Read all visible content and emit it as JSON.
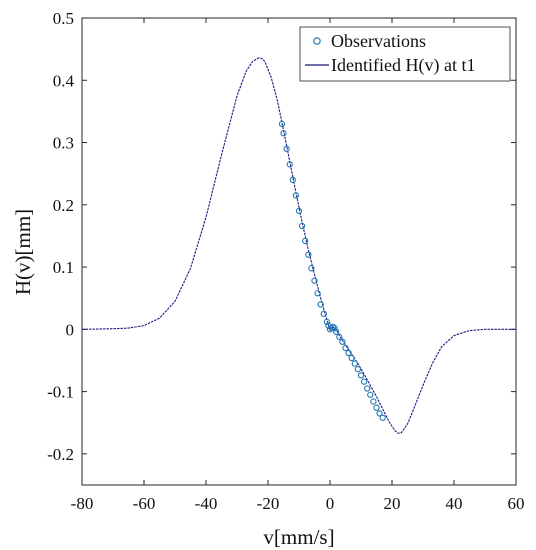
{
  "chart_data": {
    "type": "line",
    "title": "",
    "xlabel": "v[mm/s]",
    "ylabel": "H(v)[mm]",
    "xlim": [
      -80,
      60
    ],
    "ylim": [
      -0.25,
      0.5
    ],
    "xticks": [
      -80,
      -60,
      -40,
      -20,
      0,
      20,
      40,
      60
    ],
    "xtick_labels": [
      "-80",
      "-60",
      "-40",
      "-20",
      "0",
      "20",
      "40",
      "60"
    ],
    "yticks": [
      -0.2,
      -0.1,
      0,
      0.1,
      0.2,
      0.3,
      0.4,
      0.5
    ],
    "ytick_labels": [
      "-0.2",
      "-0.1",
      "0",
      "0.1",
      "0.2",
      "0.3",
      "0.4",
      "0.5"
    ],
    "grid": false,
    "legend_position": "top-right",
    "series": [
      {
        "name": "Observations",
        "style": "markers",
        "marker": "circle",
        "color": "#1f77b4",
        "x": [
          -15.5,
          -15,
          -14,
          -13,
          -12,
          -11,
          -10,
          -9,
          -8,
          -7,
          -6,
          -5,
          -4,
          -3,
          -2,
          -1,
          -0.5,
          0,
          0.5,
          1,
          1.5,
          2,
          3,
          4,
          5,
          6,
          7,
          8,
          9,
          10,
          11,
          12,
          13,
          14,
          15,
          16,
          17
        ],
        "y": [
          0.33,
          0.315,
          0.29,
          0.265,
          0.24,
          0.215,
          0.19,
          0.166,
          0.142,
          0.12,
          0.098,
          0.078,
          0.058,
          0.04,
          0.025,
          0.012,
          0.006,
          0.0,
          0.002,
          0.004,
          0.002,
          -0.004,
          -0.012,
          -0.02,
          -0.03,
          -0.038,
          -0.046,
          -0.055,
          -0.064,
          -0.074,
          -0.084,
          -0.095,
          -0.105,
          -0.116,
          -0.126,
          -0.135,
          -0.142
        ]
      },
      {
        "name": "Identified H(v) at t1",
        "style": "line",
        "color": "#1a1a80",
        "x": [
          -80,
          -70,
          -65,
          -60,
          -55,
          -50,
          -45,
          -40,
          -35,
          -30,
          -27,
          -25,
          -23,
          -22,
          -21,
          -19,
          -17,
          -15,
          -13,
          -11,
          -9,
          -7,
          -5,
          -3,
          -1,
          0,
          1,
          2,
          3,
          5,
          7,
          9,
          11,
          13,
          15,
          17,
          19,
          21,
          22,
          23,
          25,
          27,
          30,
          33,
          36,
          40,
          45,
          50,
          55,
          60
        ],
        "y": [
          0.0,
          0.001,
          0.002,
          0.006,
          0.018,
          0.045,
          0.098,
          0.18,
          0.28,
          0.375,
          0.415,
          0.43,
          0.436,
          0.435,
          0.43,
          0.405,
          0.368,
          0.32,
          0.27,
          0.22,
          0.172,
          0.128,
          0.088,
          0.05,
          0.015,
          0.0,
          0.003,
          0.0,
          -0.01,
          -0.025,
          -0.04,
          -0.055,
          -0.072,
          -0.09,
          -0.108,
          -0.128,
          -0.148,
          -0.163,
          -0.167,
          -0.166,
          -0.152,
          -0.128,
          -0.09,
          -0.055,
          -0.028,
          -0.01,
          -0.002,
          0.0,
          0.0,
          0.0
        ]
      }
    ]
  }
}
